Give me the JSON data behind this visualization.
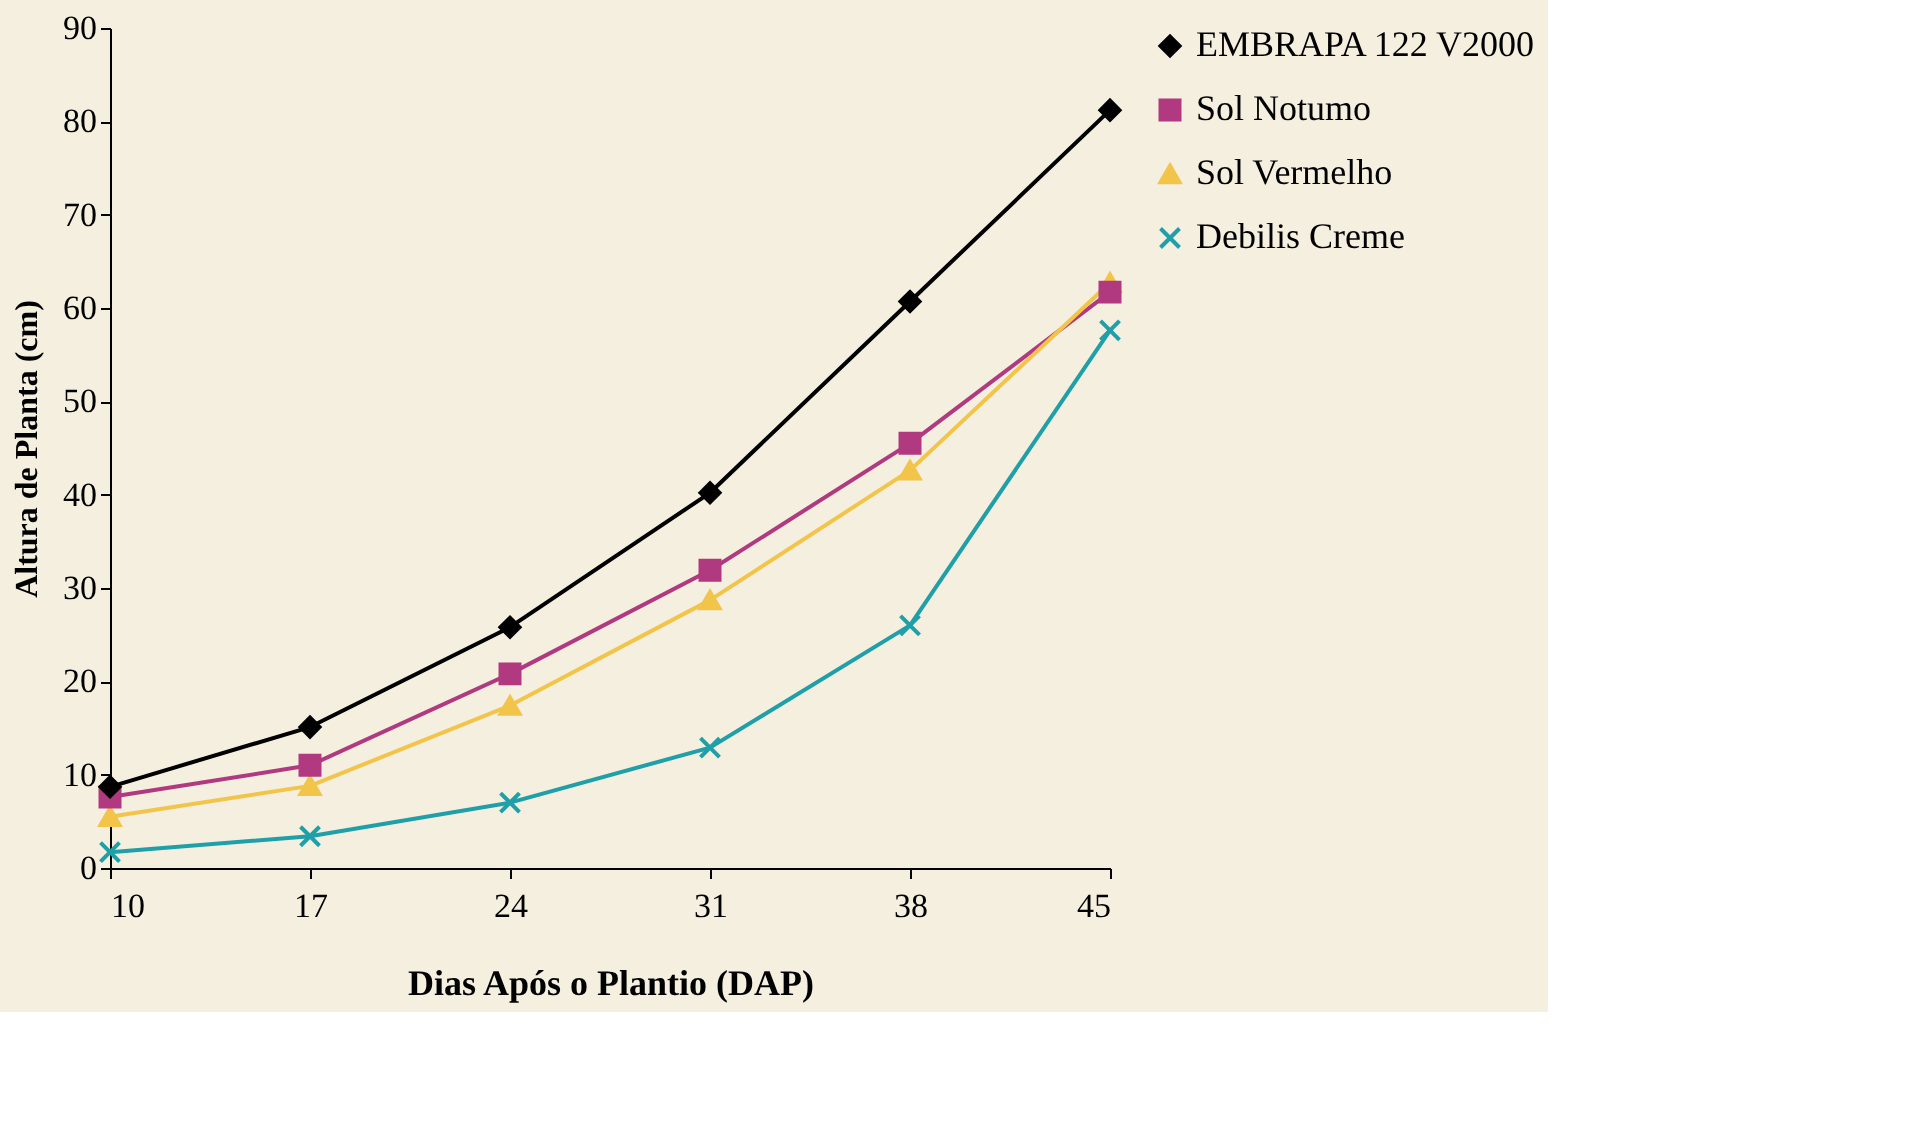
{
  "chart_data": {
    "type": "line",
    "xlabel": "Dias Após o Plantio (DAP)",
    "ylabel": "Altura de Planta (cm)",
    "x": [
      10,
      17,
      24,
      31,
      38,
      45
    ],
    "xlim": [
      10,
      45
    ],
    "xticks": [
      10,
      17,
      24,
      31,
      38,
      45
    ],
    "ylim": [
      0,
      90
    ],
    "yticks": [
      0,
      10,
      20,
      30,
      40,
      50,
      60,
      70,
      80,
      90
    ],
    "grid": false,
    "legend": "right",
    "line_style": "solid",
    "series": [
      {
        "name": "EMBRAPA 122 V2000",
        "color": "#000000",
        "marker": "diamond",
        "values": [
          8.7,
          15.1,
          25.8,
          40.2,
          60.7,
          81.2
        ]
      },
      {
        "name": "Sol Notumo",
        "color": "#b0397f",
        "marker": "square",
        "values": [
          7.6,
          11.0,
          20.8,
          31.9,
          45.5,
          61.7
        ]
      },
      {
        "name": "Sol Vermelho",
        "color": "#f2c54a",
        "marker": "triangle",
        "values": [
          5.5,
          8.8,
          17.4,
          28.7,
          42.6,
          62.7
        ]
      },
      {
        "name": "Debilis Creme",
        "color": "#1f9fa8",
        "marker": "cross",
        "values": [
          1.7,
          3.4,
          7.0,
          12.9,
          26.0,
          57.6
        ]
      }
    ]
  }
}
